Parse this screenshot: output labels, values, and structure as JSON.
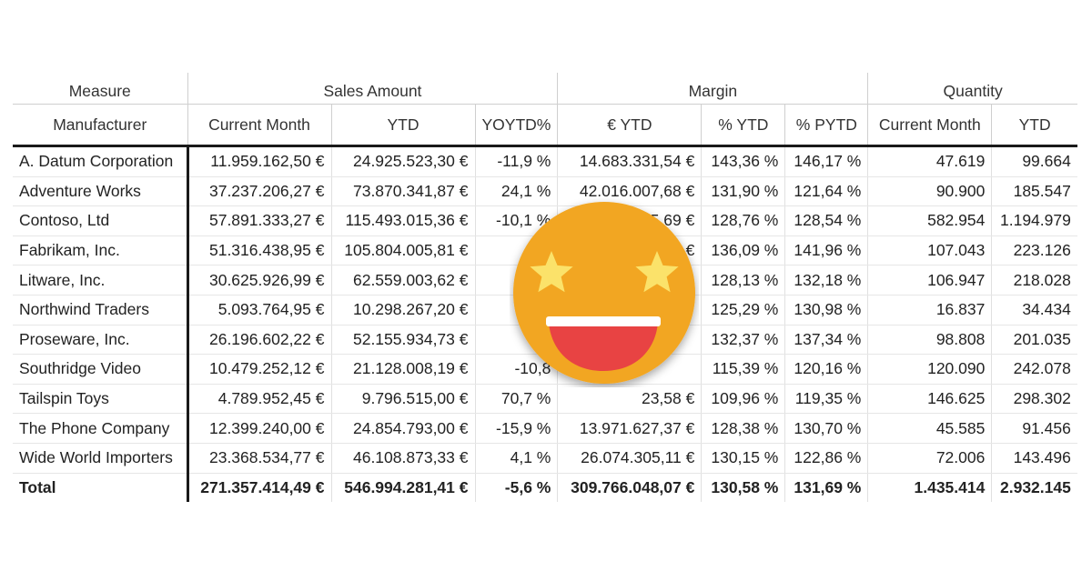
{
  "header": {
    "measure_label": "Measure",
    "manufacturer_label": "Manufacturer",
    "groups": [
      "Sales Amount",
      "Margin",
      "Quantity"
    ],
    "columns": [
      "Current Month",
      "YTD",
      "YOYTD%",
      "€ YTD",
      "% YTD",
      "% PYTD",
      "Current Month",
      "YTD"
    ]
  },
  "rows": [
    {
      "name": "A. Datum Corporation",
      "values": [
        "11.959.162,50 €",
        "24.925.523,30 €",
        "-11,9 %",
        "14.683.331,54 €",
        "143,36 %",
        "146,17 %",
        "47.619",
        "99.664"
      ]
    },
    {
      "name": "Adventure Works",
      "values": [
        "37.237.206,27 €",
        "73.870.341,87 €",
        "24,1 %",
        "42.016.007,68 €",
        "131,90 %",
        "121,64 %",
        "90.900",
        "185.547"
      ]
    },
    {
      "name": "Contoso, Ltd",
      "values": [
        "57.891.333,27 €",
        "115.493.015,36 €",
        "-10,1 %",
        "5,69 €",
        "128,76 %",
        "128,54 %",
        "582.954",
        "1.194.979"
      ]
    },
    {
      "name": "Fabrikam, Inc.",
      "values": [
        "51.316.438,95 €",
        "105.804.005,81 €",
        "-7",
        "€",
        "136,09 %",
        "141,96 %",
        "107.043",
        "223.126"
      ]
    },
    {
      "name": "Litware, Inc.",
      "values": [
        "30.625.926,99 €",
        "62.559.003,62 €",
        "-11",
        "",
        "128,13 %",
        "132,18 %",
        "106.947",
        "218.028"
      ]
    },
    {
      "name": "Northwind Traders",
      "values": [
        "5.093.764,95 €",
        "10.298.267,20 €",
        "-4",
        "",
        "125,29 %",
        "130,98 %",
        "16.837",
        "34.434"
      ]
    },
    {
      "name": "Proseware, Inc.",
      "values": [
        "26.196.602,22 €",
        "52.155.934,73 €",
        "-7",
        "",
        "132,37 %",
        "137,34 %",
        "98.808",
        "201.035"
      ]
    },
    {
      "name": "Southridge Video",
      "values": [
        "10.479.252,12 €",
        "21.128.008,19 €",
        "-10,8",
        "",
        "115,39 %",
        "120,16 %",
        "120.090",
        "242.078"
      ]
    },
    {
      "name": "Tailspin Toys",
      "values": [
        "4.789.952,45 €",
        "9.796.515,00 €",
        "70,7 %",
        "23,58 €",
        "109,96 %",
        "119,35 %",
        "146.625",
        "298.302"
      ]
    },
    {
      "name": "The Phone Company",
      "values": [
        "12.399.240,00 €",
        "24.854.793,00 €",
        "-15,9 %",
        "13.971.627,37 €",
        "128,38 %",
        "130,70 %",
        "45.585",
        "91.456"
      ]
    },
    {
      "name": "Wide World Importers",
      "values": [
        "23.368.534,77 €",
        "46.108.873,33 €",
        "4,1 %",
        "26.074.305,11 €",
        "130,15 %",
        "122,86 %",
        "72.006",
        "143.496"
      ]
    }
  ],
  "total": {
    "name": "Total",
    "values": [
      "271.357.414,49 €",
      "546.994.281,41 €",
      "-5,6 %",
      "309.766.048,07 €",
      "130,58 %",
      "131,69 %",
      "1.435.414",
      "2.932.145"
    ]
  },
  "overlay": {
    "icon": "star-struck-emoji-icon",
    "face_color": "#F2A623",
    "star_color": "#FBE26A",
    "mouth_color": "#E84343"
  }
}
